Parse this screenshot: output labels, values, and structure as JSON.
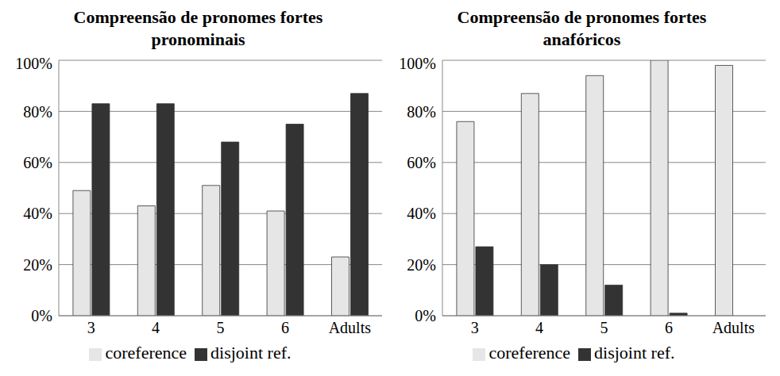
{
  "chart_data": [
    {
      "type": "bar",
      "title": "Compreensão de pronomes fortes pronominais",
      "categories": [
        "3",
        "4",
        "5",
        "6",
        "Adults"
      ],
      "series": [
        {
          "name": "coreference",
          "color": "#e6e6e6",
          "values": [
            49,
            43,
            51,
            41,
            23
          ]
        },
        {
          "name": "disjoint ref.",
          "color": "#333333",
          "values": [
            83,
            83,
            68,
            75,
            87
          ]
        }
      ],
      "ylim": [
        0,
        100
      ],
      "yticks": [
        {
          "value": 0,
          "label": "0%"
        },
        {
          "value": 20,
          "label": "20%"
        },
        {
          "value": 40,
          "label": "40%"
        },
        {
          "value": 60,
          "label": "60%"
        },
        {
          "value": 80,
          "label": "80%"
        },
        {
          "value": 100,
          "label": "100%"
        }
      ],
      "grid": true,
      "legend": "bottom"
    },
    {
      "type": "bar",
      "title": "Compreensão de pronomes fortes anafóricos",
      "categories": [
        "3",
        "4",
        "5",
        "6",
        "Adults"
      ],
      "series": [
        {
          "name": "coreference",
          "color": "#e6e6e6",
          "values": [
            76,
            87,
            94,
            100,
            98
          ]
        },
        {
          "name": "disjoint ref.",
          "color": "#333333",
          "values": [
            27,
            20,
            12,
            1,
            0
          ]
        }
      ],
      "ylim": [
        0,
        100
      ],
      "yticks": [
        {
          "value": 0,
          "label": "0%"
        },
        {
          "value": 20,
          "label": "20%"
        },
        {
          "value": 40,
          "label": "40%"
        },
        {
          "value": 60,
          "label": "60%"
        },
        {
          "value": 80,
          "label": "80%"
        },
        {
          "value": 100,
          "label": "100%"
        }
      ],
      "grid": true,
      "legend": "bottom"
    }
  ]
}
